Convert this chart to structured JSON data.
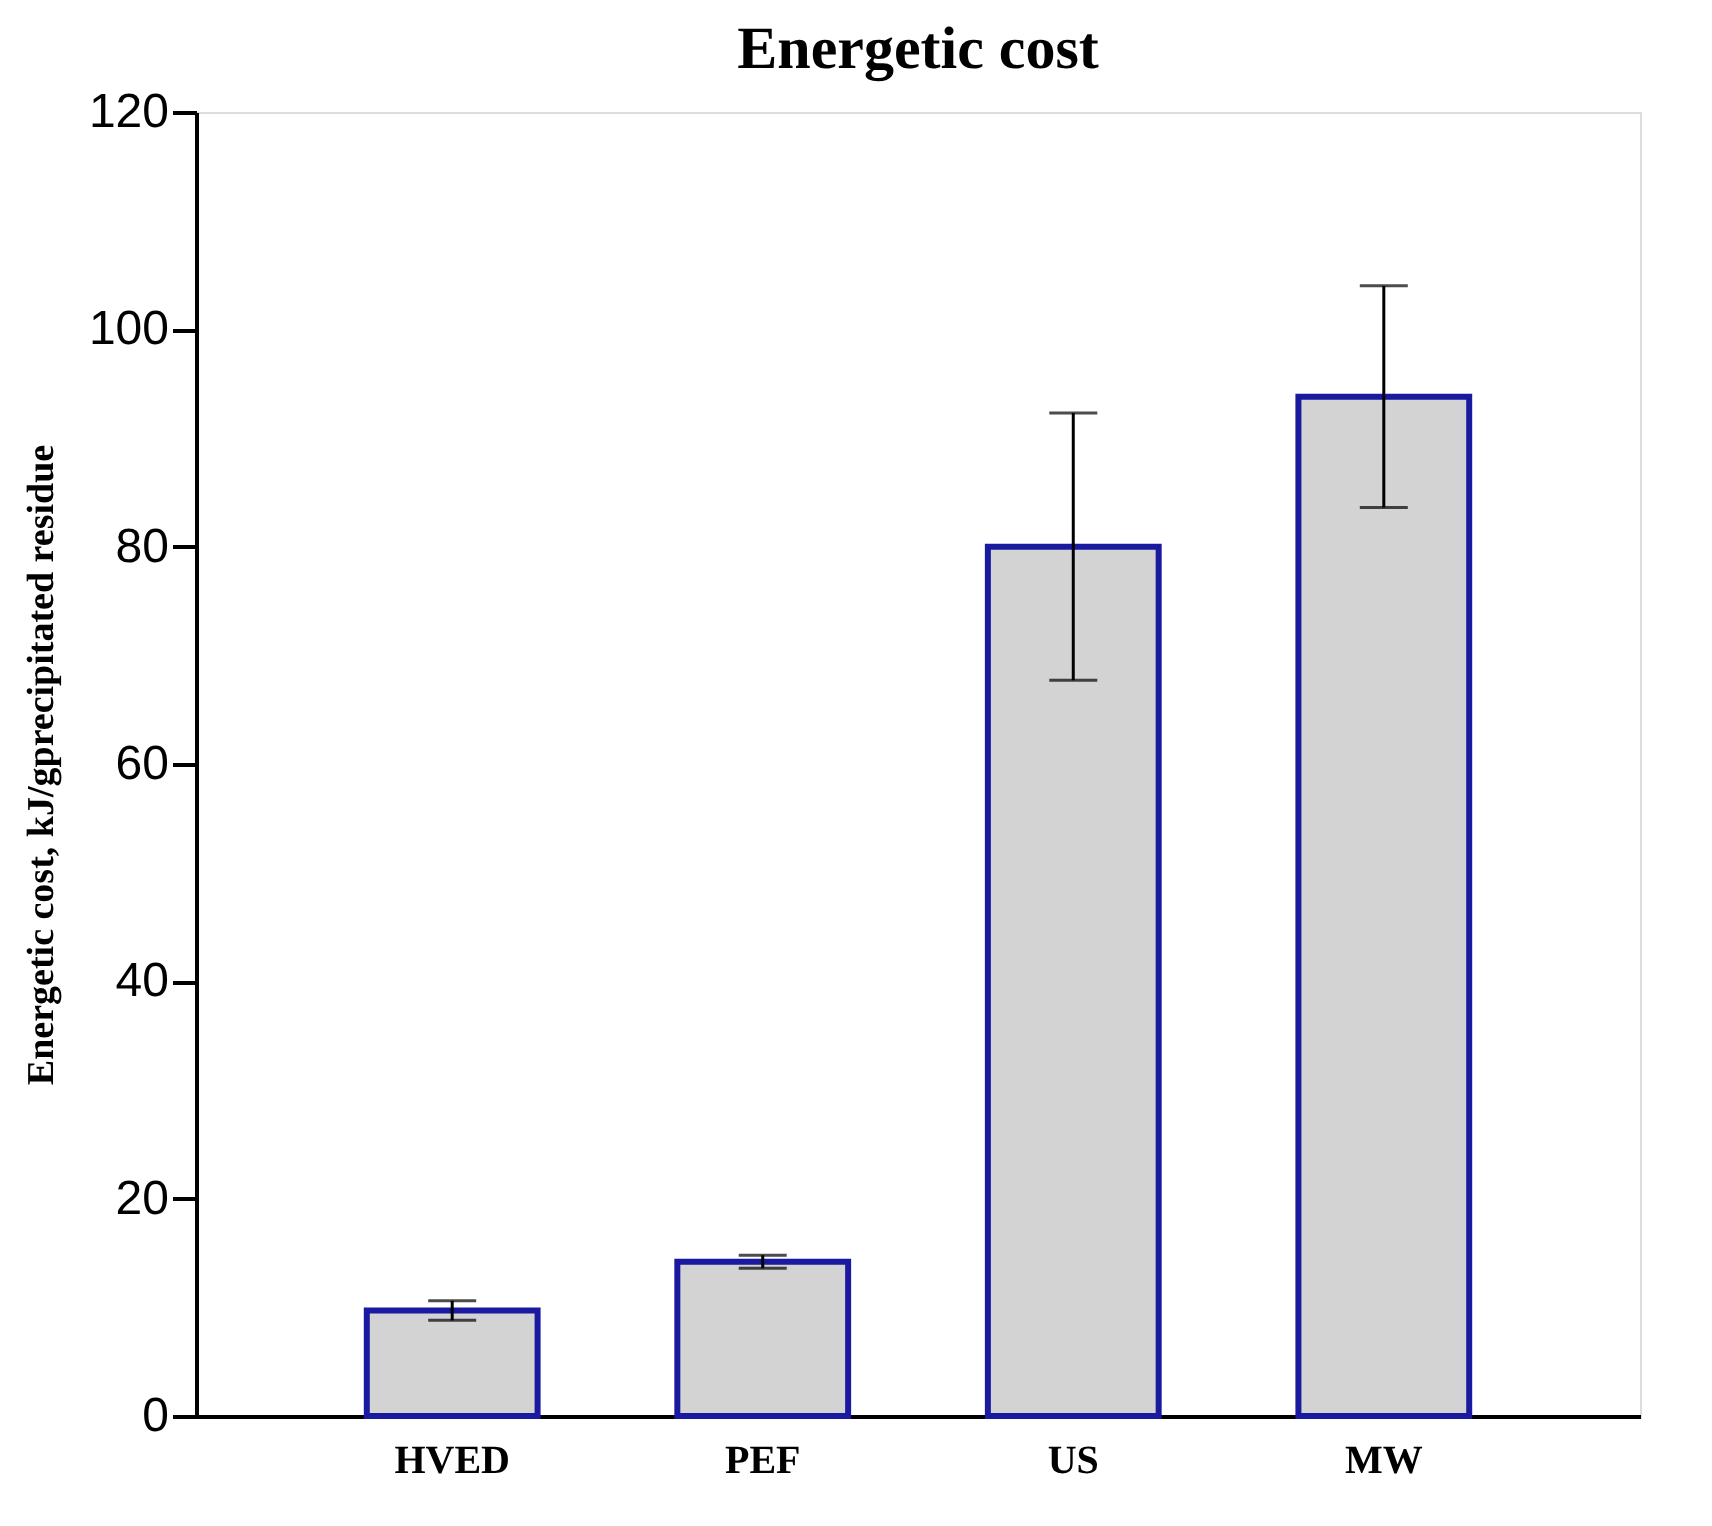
{
  "chart_data": {
    "type": "bar",
    "title": "Energetic cost",
    "ylabel": "Energetic cost, kJ/gprecipitated residue",
    "categories": [
      "HVED",
      "PEF",
      "US",
      "MW"
    ],
    "color": "#d3d3d3",
    "values": [
      9.7,
      14.2,
      80.0,
      93.8
    ],
    "errors": [
      0.9,
      0.6,
      12.3,
      10.2
    ],
    "ylim": [
      0,
      120
    ],
    "yticks": [
      0,
      20,
      40,
      60,
      80,
      100,
      120
    ],
    "grid": false
  }
}
